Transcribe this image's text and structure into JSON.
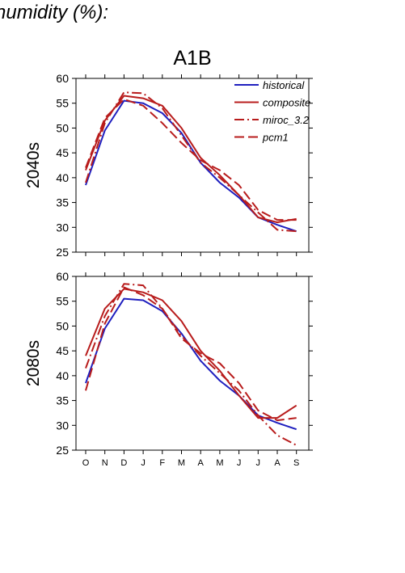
{
  "figure": {
    "title": "humidity (%):"
  },
  "chart_data": {
    "type": "line",
    "scenario": "A1B",
    "months": [
      "O",
      "N",
      "D",
      "J",
      "F",
      "M",
      "A",
      "M",
      "J",
      "J",
      "A",
      "S"
    ],
    "ylim": [
      25,
      60
    ],
    "yticks": [
      25,
      30,
      35,
      40,
      45,
      50,
      55,
      60
    ],
    "legend": {
      "placement": "top-right",
      "entries": [
        {
          "name": "historical",
          "color": "#1f1fbf",
          "dash": "solid"
        },
        {
          "name": "composite",
          "color": "#b81c1c",
          "dash": "solid"
        },
        {
          "name": "miroc_3.2",
          "color": "#b81c1c",
          "dash": "dashdot"
        },
        {
          "name": "pcm1",
          "color": "#b81c1c",
          "dash": "dashed"
        }
      ]
    },
    "panels": [
      {
        "label": "2040s",
        "series": [
          {
            "name": "historical",
            "values": [
              38.5,
              49.5,
              55.5,
              55.0,
              53.0,
              49.0,
              43.0,
              39.0,
              36.0,
              32.0,
              30.5,
              29.2
            ]
          },
          {
            "name": "composite",
            "values": [
              41.5,
              51.5,
              56.5,
              56.0,
              54.5,
              50.0,
              44.0,
              40.5,
              36.5,
              32.0,
              31.0,
              31.7
            ]
          },
          {
            "name": "miroc_3.2",
            "values": [
              39.0,
              51.0,
              57.2,
              57.0,
              54.0,
              48.5,
              43.0,
              40.0,
              36.5,
              33.0,
              29.5,
              29.2
            ]
          },
          {
            "name": "pcm1",
            "values": [
              42.0,
              52.0,
              55.8,
              54.5,
              51.0,
              47.0,
              43.5,
              41.5,
              38.5,
              33.5,
              31.5,
              31.5
            ]
          }
        ]
      },
      {
        "label": "2080s",
        "series": [
          {
            "name": "historical",
            "values": [
              38.5,
              49.5,
              55.5,
              55.2,
              53.0,
              48.5,
              43.0,
              39.0,
              36.0,
              32.0,
              30.5,
              29.2
            ]
          },
          {
            "name": "composite",
            "values": [
              44.0,
              53.5,
              57.5,
              56.8,
              55.2,
              51.0,
              45.0,
              41.0,
              36.0,
              31.5,
              31.5,
              34.0
            ]
          },
          {
            "name": "miroc_3.2",
            "values": [
              41.5,
              52.0,
              58.5,
              58.2,
              53.5,
              48.0,
              44.0,
              40.5,
              37.0,
              32.0,
              28.0,
              26.0
            ]
          },
          {
            "name": "pcm1",
            "values": [
              37.0,
              50.5,
              57.8,
              56.2,
              53.5,
              47.5,
              44.5,
              42.5,
              38.5,
              33.0,
              31.0,
              31.5
            ]
          }
        ]
      }
    ]
  }
}
